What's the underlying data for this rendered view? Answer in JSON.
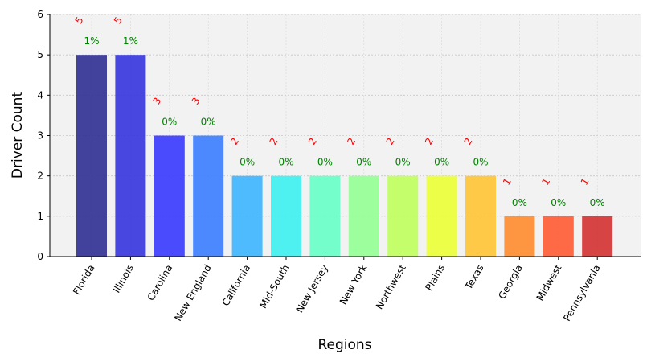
{
  "chart_data": {
    "type": "bar",
    "title": "",
    "xlabel": "Regions",
    "ylabel": "Driver Count",
    "ylim": [
      0,
      6
    ],
    "yticks": [
      0,
      1,
      2,
      3,
      4,
      5,
      6
    ],
    "grid": true,
    "legend": "none",
    "categories": [
      "Florida",
      "Illinois",
      "Carolina",
      "New England",
      "California",
      "Mid-South",
      "New Jersey",
      "New York",
      "Northwest",
      "Plains",
      "Texas",
      "Georgia",
      "Midwest",
      "Pennsylvania"
    ],
    "values": [
      5,
      5,
      3,
      3,
      2,
      2,
      2,
      2,
      2,
      2,
      2,
      1,
      1,
      1
    ],
    "count_labels": [
      "5",
      "5",
      "3",
      "3",
      "2",
      "2",
      "2",
      "2",
      "2",
      "2",
      "2",
      "1",
      "1",
      "1"
    ],
    "percent_labels": [
      "1%",
      "1%",
      "0%",
      "0%",
      "0%",
      "0%",
      "0%",
      "0%",
      "0%",
      "0%",
      "0%",
      "0%",
      "0%",
      "0%"
    ],
    "bar_colors": [
      "#2f2f94",
      "#3535de",
      "#3838ff",
      "#3a7dff",
      "#3bb5ff",
      "#3cf0f0",
      "#66ffc8",
      "#94ff94",
      "#c0ff5c",
      "#ecff36",
      "#ffc433",
      "#ff8c2e",
      "#ff5a33",
      "#d43131"
    ],
    "count_label_color": "#ff0000",
    "percent_label_color": "#008000",
    "plot_background": "#f2f2f2"
  }
}
